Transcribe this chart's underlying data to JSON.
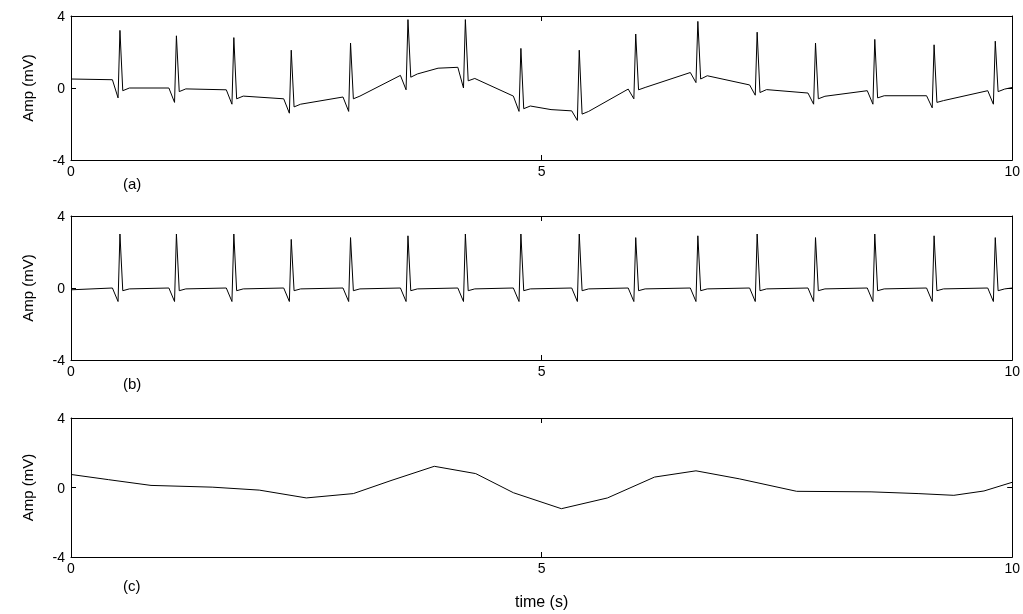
{
  "chart_data": [
    {
      "type": "line",
      "ylabel": "Amp (mV)",
      "annotations": [
        "(a)"
      ],
      "xlim": [
        0,
        10
      ],
      "xticks": [
        0,
        5,
        10
      ],
      "ylim": [
        -4,
        4
      ],
      "yticks": [
        -4,
        0,
        4
      ],
      "grid": false,
      "series": [
        {
          "color": "#000000",
          "x": [
            0,
            0.44,
            0.5,
            0.52,
            0.55,
            0.62,
            1.04,
            1.1,
            1.12,
            1.15,
            1.22,
            1.65,
            1.71,
            1.73,
            1.76,
            1.83,
            2.26,
            2.32,
            2.34,
            2.37,
            2.44,
            2.89,
            2.95,
            2.97,
            3.0,
            3.07,
            3.5,
            3.56,
            3.58,
            3.61,
            3.68,
            3.9,
            4.11,
            4.17,
            4.19,
            4.22,
            4.29,
            4.7,
            4.76,
            4.78,
            4.81,
            4.88,
            5.1,
            5.32,
            5.38,
            5.4,
            5.43,
            5.5,
            5.92,
            5.98,
            6.0,
            6.03,
            6.1,
            6.58,
            6.64,
            6.66,
            6.69,
            6.76,
            7.21,
            7.27,
            7.29,
            7.32,
            7.39,
            7.83,
            7.89,
            7.91,
            7.94,
            8.01,
            8.46,
            8.52,
            8.54,
            8.57,
            8.64,
            9.09,
            9.15,
            9.17,
            9.2,
            9.27,
            9.74,
            9.8,
            9.82,
            9.85,
            9.92,
            10
          ],
          "values": [
            0.5,
            0.46,
            -0.55,
            3.2,
            -0.15,
            0.0,
            0.0,
            -0.8,
            2.9,
            -0.2,
            -0.05,
            -0.1,
            -0.9,
            2.8,
            -0.6,
            -0.45,
            -0.6,
            -1.4,
            2.1,
            -1.05,
            -0.9,
            -0.5,
            -1.3,
            2.5,
            -0.6,
            -0.45,
            0.7,
            -0.1,
            3.8,
            0.6,
            0.78,
            1.1,
            1.15,
            0.0,
            3.8,
            0.4,
            0.53,
            -0.45,
            -1.3,
            2.2,
            -1.15,
            -1.0,
            -1.2,
            -1.27,
            -1.8,
            2.1,
            -1.45,
            -1.3,
            -0.06,
            -0.6,
            3.0,
            -0.1,
            0.03,
            0.86,
            0.3,
            3.7,
            0.5,
            0.68,
            0.17,
            -0.4,
            3.1,
            -0.25,
            -0.09,
            -0.28,
            -0.9,
            2.5,
            -0.6,
            -0.46,
            -0.15,
            -0.9,
            2.7,
            -0.55,
            -0.43,
            -0.43,
            -1.1,
            2.4,
            -0.8,
            -0.7,
            -0.15,
            -0.9,
            2.6,
            -0.2,
            -0.06,
            0.03
          ]
        }
      ]
    },
    {
      "type": "line",
      "ylabel": "Amp (mV)",
      "annotations": [
        "(b)"
      ],
      "xlim": [
        0,
        10
      ],
      "xticks": [
        0,
        5,
        10
      ],
      "ylim": [
        -4,
        4
      ],
      "yticks": [
        -4,
        0,
        4
      ],
      "grid": false,
      "series": [
        {
          "color": "#000000",
          "x": [
            0,
            0.44,
            0.5,
            0.52,
            0.55,
            0.62,
            1.04,
            1.1,
            1.12,
            1.15,
            1.22,
            1.65,
            1.71,
            1.73,
            1.76,
            1.83,
            2.26,
            2.32,
            2.34,
            2.37,
            2.44,
            2.89,
            2.95,
            2.97,
            3.0,
            3.07,
            3.5,
            3.56,
            3.58,
            3.61,
            3.68,
            4.11,
            4.17,
            4.19,
            4.22,
            4.29,
            4.7,
            4.76,
            4.78,
            4.81,
            4.88,
            5.32,
            5.38,
            5.4,
            5.43,
            5.5,
            5.92,
            5.98,
            6.0,
            6.03,
            6.1,
            6.58,
            6.64,
            6.66,
            6.69,
            6.76,
            7.21,
            7.27,
            7.29,
            7.32,
            7.39,
            7.83,
            7.89,
            7.91,
            7.94,
            8.01,
            8.46,
            8.52,
            8.54,
            8.57,
            8.64,
            9.09,
            9.15,
            9.17,
            9.2,
            9.27,
            9.74,
            9.8,
            9.82,
            9.85,
            9.92,
            10
          ],
          "values": [
            -0.1,
            0.0,
            -0.75,
            3.0,
            -0.15,
            -0.05,
            0.0,
            -0.75,
            3.0,
            -0.15,
            -0.05,
            0.0,
            -0.75,
            3.0,
            -0.15,
            -0.05,
            0.0,
            -0.75,
            2.7,
            -0.15,
            -0.05,
            0.0,
            -0.75,
            2.8,
            -0.15,
            -0.05,
            0.0,
            -0.75,
            2.9,
            -0.15,
            -0.05,
            0.0,
            -0.75,
            3.0,
            -0.15,
            -0.05,
            0.0,
            -0.75,
            3.0,
            -0.15,
            -0.05,
            0.0,
            -0.75,
            3.0,
            -0.15,
            -0.05,
            0.0,
            -0.75,
            2.8,
            -0.15,
            -0.05,
            0.0,
            -0.75,
            2.9,
            -0.15,
            -0.05,
            0.0,
            -0.75,
            3.0,
            -0.15,
            -0.05,
            0.0,
            -0.75,
            2.8,
            -0.15,
            -0.05,
            0.0,
            -0.75,
            3.0,
            -0.15,
            -0.05,
            0.0,
            -0.75,
            2.9,
            -0.15,
            -0.05,
            0.0,
            -0.75,
            2.8,
            -0.15,
            -0.05,
            0.0
          ]
        }
      ]
    },
    {
      "type": "line",
      "ylabel": "Amp (mV)",
      "xlabel": "time (s)",
      "annotations": [
        "(c)"
      ],
      "xlim": [
        0,
        10
      ],
      "xticks": [
        0,
        5,
        10
      ],
      "ylim": [
        -4,
        4
      ],
      "yticks": [
        -4,
        0,
        4
      ],
      "grid": false,
      "series": [
        {
          "color": "#000000",
          "x": [
            0,
            0.4,
            0.85,
            1.5,
            2.0,
            2.5,
            3.0,
            3.4,
            3.86,
            4.3,
            4.7,
            5.21,
            5.7,
            6.2,
            6.64,
            7.1,
            7.71,
            8.5,
            9.0,
            9.38,
            9.7,
            10
          ],
          "values": [
            0.75,
            0.45,
            0.12,
            0.02,
            -0.15,
            -0.6,
            -0.35,
            0.4,
            1.22,
            0.8,
            -0.3,
            -1.22,
            -0.6,
            0.6,
            0.96,
            0.5,
            -0.22,
            -0.25,
            -0.35,
            -0.45,
            -0.2,
            0.3
          ]
        }
      ]
    }
  ]
}
